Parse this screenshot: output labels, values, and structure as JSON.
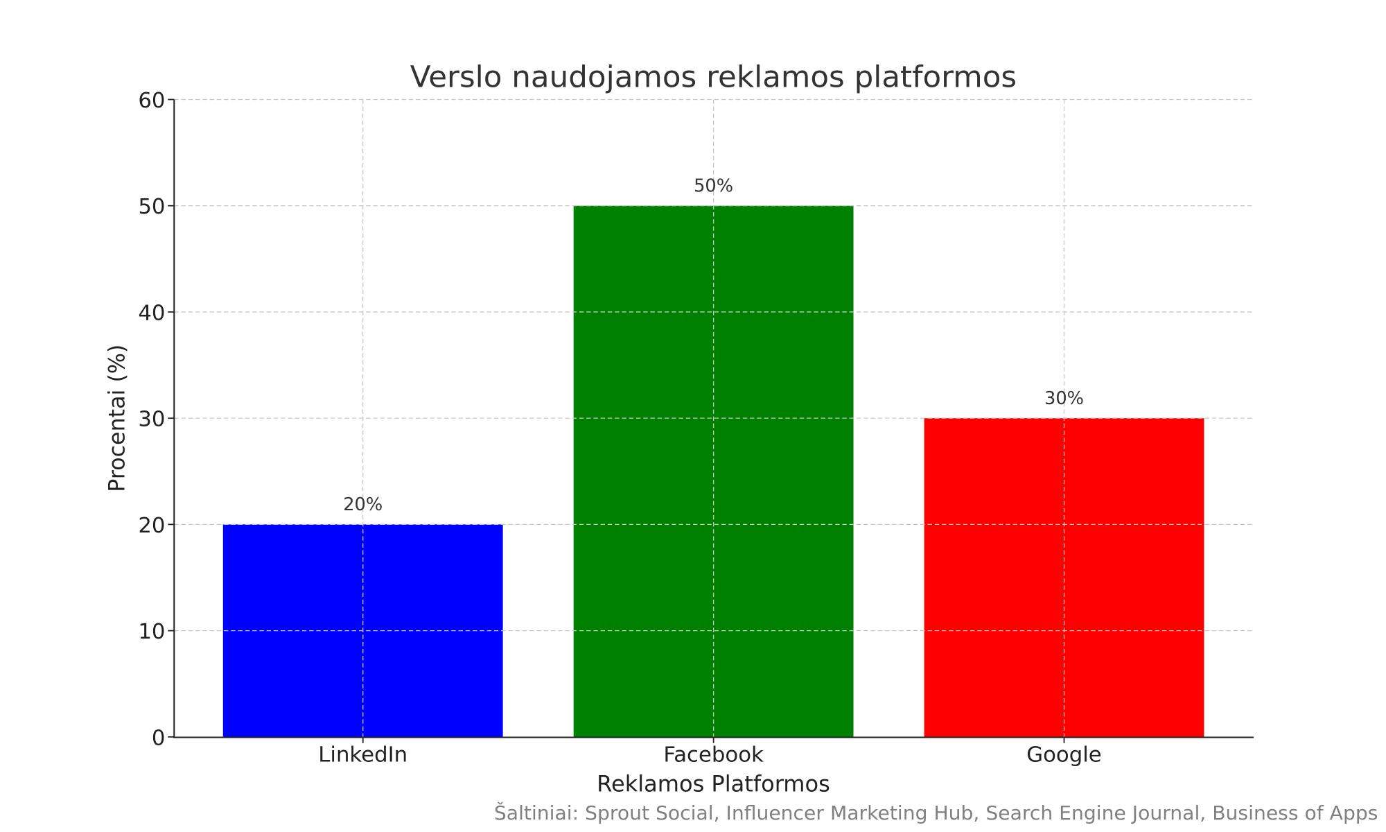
{
  "chart_data": {
    "type": "bar",
    "title": "Verslo naudojamos reklamos platformos",
    "xlabel": "Reklamos Platformos",
    "ylabel": "Procentai (%)",
    "categories": [
      "LinkedIn",
      "Facebook",
      "Google"
    ],
    "values": [
      20,
      50,
      30
    ],
    "data_labels": [
      "20%",
      "50%",
      "30%"
    ],
    "colors": [
      "#0000ff",
      "#008000",
      "#ff0000"
    ],
    "ylim": [
      0,
      60
    ],
    "yticks": [
      0,
      10,
      20,
      30,
      40,
      50,
      60
    ],
    "ytick_labels": [
      "0",
      "10",
      "20",
      "30",
      "40",
      "50",
      "60"
    ],
    "grid": true,
    "source_note": "Šaltiniai: Sprout Social, Influencer Marketing Hub, Search Engine Journal, Business of Apps"
  }
}
